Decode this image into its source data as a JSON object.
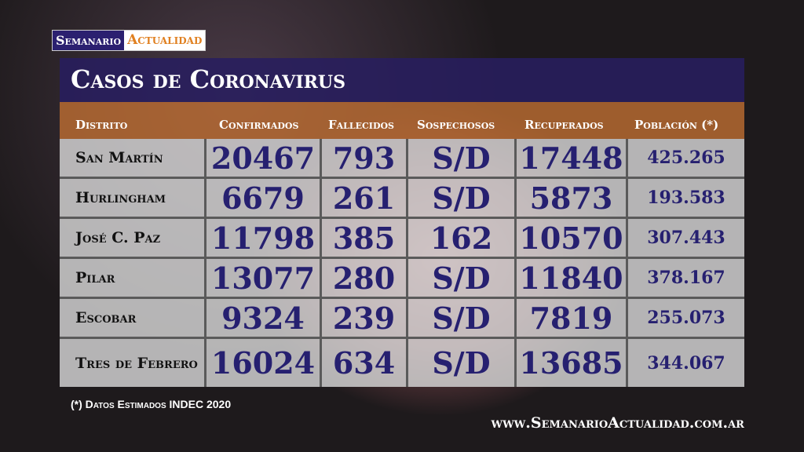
{
  "logo": {
    "part1": "Semanario",
    "part2": "Actualidad"
  },
  "title": "Casos de Coronavirus",
  "headers": [
    "Distrito",
    "Confirmados",
    "Fallecidos",
    "Sospechosos",
    "Recuperados",
    "Población (*)"
  ],
  "rows": [
    [
      "San Martín",
      "20467",
      "793",
      "S/D",
      "17448",
      "425.265"
    ],
    [
      "Hurlingham",
      "6679",
      "261",
      "S/D",
      "5873",
      "193.583"
    ],
    [
      "José C. Paz",
      "11798",
      "385",
      "162",
      "10570",
      "307.443"
    ],
    [
      "Pilar",
      "13077",
      "280",
      "S/D",
      "11840",
      "378.167"
    ],
    [
      "Escobar",
      "9324",
      "239",
      "S/D",
      "7819",
      "255.073"
    ],
    [
      "Tres de Febrero",
      "16024",
      "634",
      "S/D",
      "13685",
      "344.067"
    ]
  ],
  "footnote": "(*) Datos Estimados INDEC 2020",
  "url": "www.SemanarioActualidad.com.ar"
}
